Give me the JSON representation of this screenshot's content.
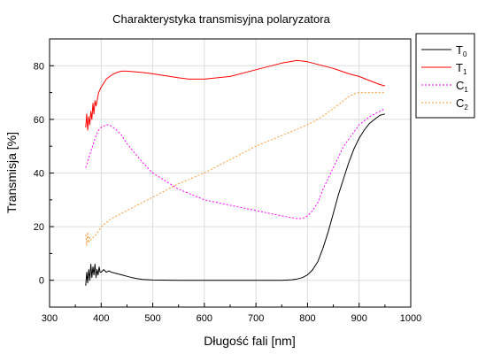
{
  "chart_data": {
    "type": "line",
    "title": "Charakterystyka transmisyjna polaryzatora",
    "xlabel": "Długość fali [nm]",
    "ylabel": "Transmisja [%]",
    "xlim": [
      300,
      1000
    ],
    "ylim": [
      -10,
      90
    ],
    "x_ticks": [
      300,
      400,
      500,
      600,
      700,
      800,
      900,
      1000
    ],
    "y_ticks": [
      0,
      20,
      40,
      60,
      80
    ],
    "grid": true,
    "legend_position": "outside-top-right",
    "series": [
      {
        "name": "T",
        "sub": "0",
        "color": "#000000",
        "dash": "",
        "x": [
          370,
          372,
          374,
          376,
          378,
          380,
          382,
          384,
          386,
          388,
          390,
          392,
          394,
          396,
          398,
          400,
          405,
          410,
          415,
          420,
          430,
          440,
          450,
          460,
          470,
          480,
          500,
          550,
          600,
          650,
          700,
          750,
          770,
          780,
          790,
          800,
          810,
          820,
          830,
          840,
          850,
          860,
          870,
          880,
          890,
          900,
          910,
          920,
          930,
          940,
          950
        ],
        "y": [
          -2,
          3,
          -1,
          4,
          0,
          6,
          1,
          5,
          2,
          6,
          1,
          4,
          2,
          5,
          3,
          3,
          4,
          3,
          3.5,
          3,
          2.5,
          2,
          1.5,
          1,
          0.6,
          0.3,
          0.1,
          0,
          0,
          0,
          0,
          0,
          0.2,
          0.5,
          1,
          2,
          4,
          7,
          12,
          18,
          25,
          32,
          38,
          44,
          49,
          53,
          56,
          58.5,
          60,
          61.5,
          62
        ]
      },
      {
        "name": "T",
        "sub": "1",
        "color": "#ff0000",
        "dash": "",
        "x": [
          370,
          372,
          374,
          376,
          378,
          380,
          382,
          384,
          386,
          388,
          390,
          395,
          400,
          410,
          420,
          430,
          440,
          450,
          480,
          500,
          550,
          570,
          600,
          650,
          700,
          750,
          780,
          800,
          820,
          850,
          880,
          900,
          920,
          940,
          950
        ],
        "y": [
          57,
          62,
          56,
          61,
          58,
          63,
          60,
          66,
          62,
          67,
          65,
          70,
          72,
          75,
          76.5,
          77.5,
          78,
          78,
          77.5,
          77,
          75.5,
          75,
          75,
          76,
          78.5,
          81,
          82,
          81.5,
          80.5,
          79,
          77,
          76,
          74.5,
          73,
          72.5
        ]
      },
      {
        "name": "C",
        "sub": "1",
        "color": "#ff00ff",
        "dash": "2,2",
        "x": [
          370,
          375,
          380,
          385,
          390,
          395,
          400,
          405,
          410,
          415,
          420,
          430,
          440,
          450,
          480,
          500,
          550,
          600,
          650,
          700,
          750,
          780,
          790,
          800,
          810,
          820,
          830,
          850,
          870,
          900,
          920,
          950
        ],
        "y": [
          42,
          45,
          48,
          51,
          54,
          56,
          57,
          57.5,
          58,
          58,
          57.5,
          56,
          54,
          51,
          44,
          40,
          34,
          30,
          28,
          26,
          24,
          23,
          23,
          24,
          26,
          29,
          34,
          42,
          50,
          58,
          61,
          64
        ]
      },
      {
        "name": "C",
        "sub": "2",
        "color": "#ff9933",
        "dash": "2,2",
        "x": [
          370,
          372,
          374,
          376,
          378,
          380,
          385,
          390,
          400,
          420,
          450,
          500,
          550,
          600,
          650,
          700,
          750,
          800,
          820,
          850,
          870,
          880,
          890,
          900,
          920,
          950
        ],
        "y": [
          17,
          13,
          18,
          14,
          16,
          15,
          16,
          17,
          20,
          23,
          26,
          31,
          36,
          40,
          45,
          50,
          54,
          58,
          60,
          64,
          67,
          68.5,
          69.5,
          70,
          70,
          70
        ]
      }
    ]
  }
}
